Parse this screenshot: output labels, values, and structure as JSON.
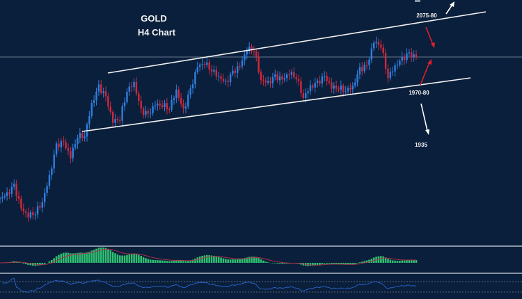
{
  "chart_data": {
    "type": "candlestick",
    "title": "GOLD",
    "subtitle": "H4 Chart",
    "symbol": "GOLD",
    "timeframe": "H4",
    "closes": [
      1792,
      1798,
      1811,
      1776,
      1766,
      1771,
      1787,
      1825,
      1873,
      1878,
      1857,
      1889,
      1889,
      1937,
      1964,
      1948,
      1911,
      1916,
      1959,
      1970,
      1927,
      1921,
      1937,
      1937,
      1932,
      1959,
      1927,
      1959,
      1996,
      2002,
      1991,
      1980,
      1970,
      1986,
      1996,
      2023,
      2023,
      1975,
      1970,
      1980,
      1975,
      1986,
      1980,
      1948,
      1964,
      1970,
      1980,
      1964,
      1964,
      1959,
      1964,
      1991,
      1996,
      2034,
      2029,
      1980,
      1996,
      2007,
      2015,
      2010
    ],
    "current_price_line": 2010,
    "ylim": [
      1700,
      2100
    ],
    "annotations": [
      {
        "text": "2075-80",
        "level": 2077
      },
      {
        "text": "1970-80",
        "level": 1975
      },
      {
        "text": "1935",
        "level": 1935
      }
    ],
    "channel": {
      "upper": "resistance trendline",
      "lower": "support trendline"
    },
    "indicators": [
      "MACD histogram with signal line",
      "RSI line"
    ],
    "colors": {
      "background": "#0a1f3b",
      "bull": "#2f7fe0",
      "bear": "#d0283c",
      "histogram": "#2fbf71",
      "signal": "#b0304a",
      "rsi": "#2a5fc4"
    }
  }
}
